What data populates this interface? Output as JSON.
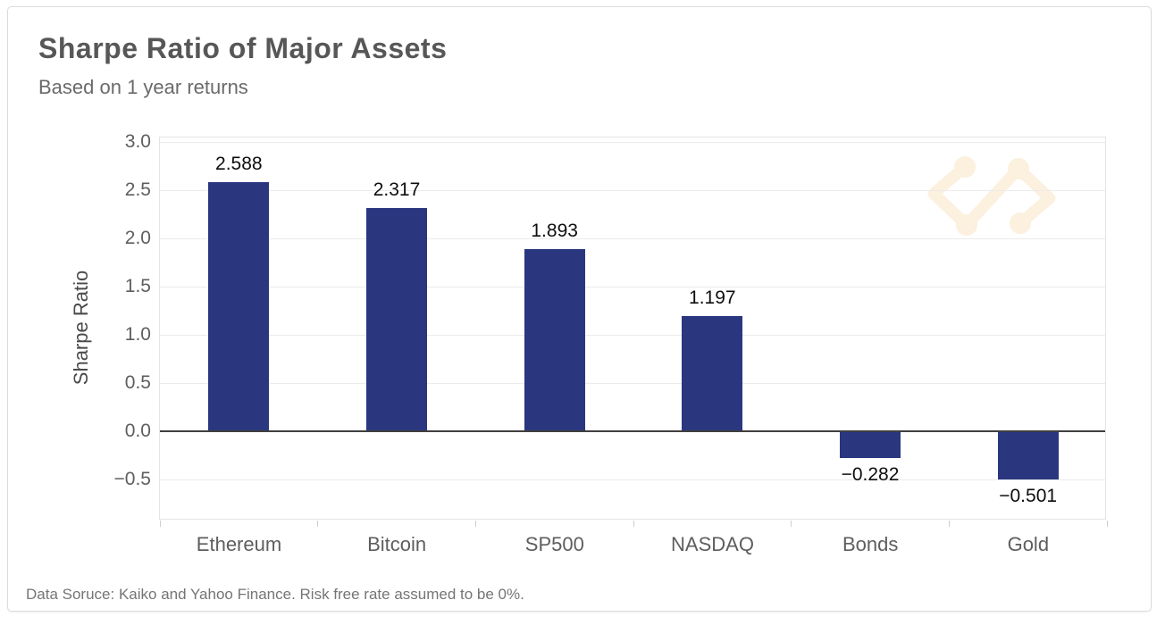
{
  "page": {
    "title": "Sharpe Ratio of Major Assets",
    "subtitle": "Based on 1 year returns",
    "footer_note": "Data Soruce: Kaiko and Yahoo Finance. Risk free rate assumed to be 0%."
  },
  "colors": {
    "bar": "#2a377f",
    "zero_line": "#3f3f3f",
    "grid": "#ebebeb",
    "plot_border": "#e4e4e4",
    "card_border": "#dcdcdc",
    "title_text": "#575757",
    "subtitle_text": "#6a6a6a",
    "tick_text": "#5e5e5e",
    "value_text": "#0e0e0e",
    "footer_text": "#757575",
    "watermark": "#fcf0de",
    "background": "#ffffff"
  },
  "icons": {
    "watermark": "kaiko-logo-watermark"
  },
  "chart_data": {
    "type": "bar",
    "title": "Sharpe Ratio of Major Assets",
    "subtitle": "Based on 1 year returns",
    "categories": [
      "Ethereum",
      "Bitcoin",
      "SP500",
      "NASDAQ",
      "Bonds",
      "Gold"
    ],
    "values": [
      2.588,
      2.317,
      1.893,
      1.197,
      -0.282,
      -0.501
    ],
    "value_labels": [
      "2.588",
      "2.317",
      "1.893",
      "1.197",
      "−0.282",
      "−0.501"
    ],
    "xlabel": "",
    "ylabel": "Sharpe Ratio",
    "ylim": [
      -0.93,
      3.05
    ],
    "yticks": [
      3.0,
      2.5,
      2.0,
      1.5,
      1.0,
      0.5,
      0.0,
      -0.5
    ],
    "ytick_labels": [
      "3.0",
      "2.5",
      "2.0",
      "1.5",
      "1.0",
      "0.5",
      "0.0",
      "−0.5"
    ],
    "grid": "horizontal",
    "legend": "none",
    "bar_color": "#2a377f",
    "source_note": "Data Soruce: Kaiko and Yahoo Finance. Risk free rate assumed to be 0%."
  }
}
